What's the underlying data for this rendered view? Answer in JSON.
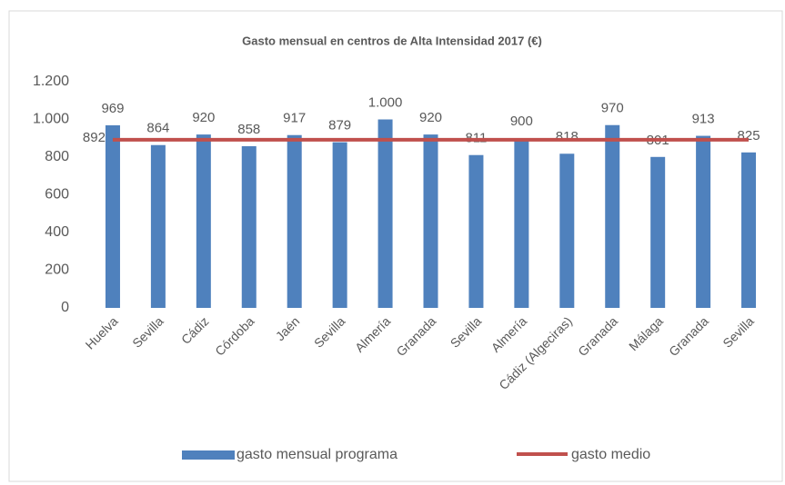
{
  "chart_data": {
    "type": "bar",
    "title": "Gasto mensual en centros de Alta Intensidad 2017 (€)",
    "categories": [
      "Huelva",
      "Sevilla",
      "Cádiz",
      "Córdoba",
      "Jaén",
      "Sevilla",
      "Almería",
      "Granada",
      "Sevilla",
      "Almería",
      "Cádiz (Algeciras)",
      "Granada",
      "Málaga",
      "Granada",
      "Sevilla"
    ],
    "series": [
      {
        "name": "gasto mensual programa",
        "type": "bar",
        "color": "#4f81bd",
        "values": [
          969,
          864,
          920,
          858,
          917,
          879,
          1000,
          920,
          811,
          900,
          818,
          970,
          801,
          913,
          825
        ],
        "value_labels": [
          "969",
          "864",
          "920",
          "858",
          "917",
          "879",
          "1.000",
          "920",
          "811",
          "900",
          "818",
          "970",
          "801",
          "913",
          "825"
        ]
      },
      {
        "name": "gasto medio",
        "type": "line",
        "color": "#c0504d",
        "values": [
          892,
          892,
          892,
          892,
          892,
          892,
          892,
          892,
          892,
          892,
          892,
          892,
          892,
          892,
          892
        ]
      }
    ],
    "ylim": [
      0,
      1200
    ],
    "yticks": [
      0,
      200,
      400,
      600,
      800,
      {
        "value": 1000,
        "label": "1.000"
      },
      {
        "value": 1200,
        "label": "1.200"
      }
    ],
    "legend": "bottom"
  }
}
